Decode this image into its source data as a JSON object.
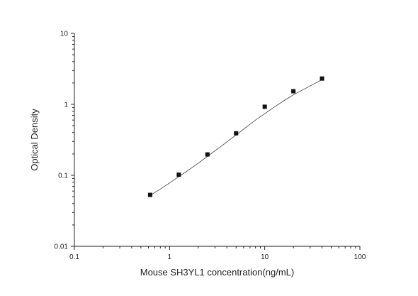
{
  "chart_data": {
    "type": "scatter",
    "title": "",
    "xlabel": "Mouse SH3YL1 concentration(ng/mL)",
    "ylabel": "Optical Density",
    "xscale": "log",
    "yscale": "log",
    "xlim": [
      0.1,
      100
    ],
    "ylim": [
      0.01,
      10
    ],
    "x_ticks": [
      0.1,
      1,
      10,
      100
    ],
    "x_tick_labels": [
      "0.1",
      "1",
      "10",
      "100"
    ],
    "y_ticks": [
      0.01,
      0.1,
      1,
      10
    ],
    "y_tick_labels": [
      "0.01",
      "0.1",
      "1",
      "10"
    ],
    "grid": false,
    "legend": "none",
    "series": [
      {
        "marker": "square",
        "x": [
          0.625,
          1.25,
          2.5,
          5,
          10,
          20,
          40
        ],
        "y": [
          0.053,
          0.102,
          0.197,
          0.391,
          0.925,
          1.53,
          2.31
        ]
      }
    ],
    "fit_curve": {
      "type": "four-parameter logistic",
      "x": [
        0.625,
        0.8,
        1,
        1.25,
        1.6,
        2,
        2.5,
        3.2,
        4,
        5,
        6.3,
        8,
        10,
        12.5,
        16,
        20,
        25,
        32,
        40
      ],
      "y": [
        0.052,
        0.064,
        0.078,
        0.096,
        0.12,
        0.148,
        0.185,
        0.236,
        0.295,
        0.37,
        0.47,
        0.6,
        0.74,
        0.91,
        1.13,
        1.36,
        1.6,
        1.9,
        2.23
      ]
    },
    "colors": {
      "axis": "#222222",
      "marker": "#111111",
      "curve": "#555555"
    }
  }
}
